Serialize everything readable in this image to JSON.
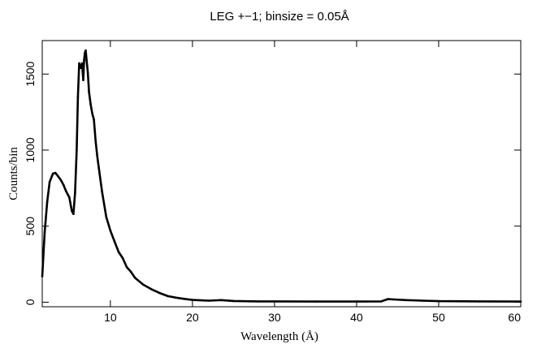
{
  "chart_data": {
    "type": "line",
    "title": "LEG +−1; binsize = 0.05Å",
    "xlabel": "Wavelength (Å)",
    "ylabel": "Counts/bin",
    "xlim": [
      1.7,
      60
    ],
    "ylim": [
      -30,
      1720
    ],
    "x_ticks": [
      10,
      20,
      30,
      40,
      50,
      60
    ],
    "y_ticks": [
      0,
      500,
      1000,
      1500
    ],
    "grid": false,
    "legend": "none",
    "line_color": "#000000",
    "series": [
      {
        "x": [
          1.7,
          2.0,
          2.3,
          2.6,
          3.0,
          3.3,
          3.6,
          4.0,
          4.3,
          4.6,
          5.0,
          5.3,
          5.5,
          5.7,
          5.9,
          6.05,
          6.2,
          6.3,
          6.4,
          6.55,
          6.7,
          6.8,
          6.9,
          7.0,
          7.1,
          7.25,
          7.4,
          7.6,
          7.8,
          8.0,
          8.2,
          8.4,
          8.6,
          9.0,
          9.5,
          10.0,
          10.5,
          11.0,
          11.5,
          12.0,
          12.5,
          13.0,
          14.0,
          15.0,
          16.0,
          17.0,
          18.0,
          19.0,
          20.0,
          22.0,
          23.5,
          25.0,
          28.0,
          30.0,
          35.0,
          40.0,
          43.0,
          43.8,
          44.5,
          46.0,
          48.0,
          50.0,
          55.0,
          60.0
        ],
        "y": [
          170,
          460,
          660,
          790,
          845,
          850,
          830,
          800,
          770,
          730,
          690,
          600,
          580,
          720,
          1000,
          1350,
          1570,
          1555,
          1540,
          1570,
          1460,
          1590,
          1640,
          1655,
          1590,
          1510,
          1380,
          1300,
          1240,
          1200,
          1060,
          960,
          880,
          720,
          560,
          470,
          400,
          330,
          290,
          230,
          200,
          160,
          115,
          85,
          60,
          40,
          30,
          22,
          15,
          10,
          14,
          8,
          5,
          5,
          4,
          4,
          5,
          20,
          18,
          14,
          10,
          7,
          5,
          4
        ]
      }
    ]
  }
}
